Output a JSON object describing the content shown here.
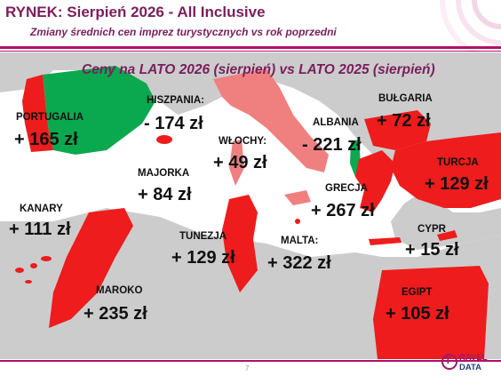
{
  "header": {
    "title": "RYNEK: Sierpień 2026 - All Inclusive",
    "subtitle": "Zmiany średnich cen imprez turystycznych vs rok poprzedni"
  },
  "map": {
    "title": "Ceny na LATO 2026 (sierpień) vs  LATO 2025 (sierpień)",
    "colors": {
      "increase": "#ee1c1c",
      "decrease": "#0aa84f",
      "smallIncrease": "#f08080",
      "land": "#cccccc",
      "sea": "#ffffff"
    },
    "destinations": [
      {
        "name": "PORTUGALIA",
        "change": "+ 165 zł"
      },
      {
        "name": "HISZPANIA:",
        "change": "- 174 zł"
      },
      {
        "name": "MAJORKA",
        "change": "+ 84 zł"
      },
      {
        "name": "KANARY",
        "change": "+ 111 zł"
      },
      {
        "name": "MAROKO",
        "change": "+ 235 zł"
      },
      {
        "name": "WŁOCHY:",
        "change": "+ 49 zł"
      },
      {
        "name": "TUNEZJA",
        "change": "+ 129 zł"
      },
      {
        "name": "MALTA:",
        "change": "+ 322 zł"
      },
      {
        "name": "ALBANIA",
        "change": "- 221 zł"
      },
      {
        "name": "GRECJA",
        "change": "+ 267 zł"
      },
      {
        "name": "BUŁGARIA",
        "change": "+ 72 zł"
      },
      {
        "name": "TURCJA",
        "change": "+ 129 zł"
      },
      {
        "name": "CYPR",
        "change": "+ 15 zł"
      },
      {
        "name": "EGIPT",
        "change": "+ 105 zł"
      }
    ]
  },
  "footer": {
    "page": "7",
    "logo_line1": "RAVEL",
    "logo_line2": "DATA",
    "logo_letter": "T"
  }
}
